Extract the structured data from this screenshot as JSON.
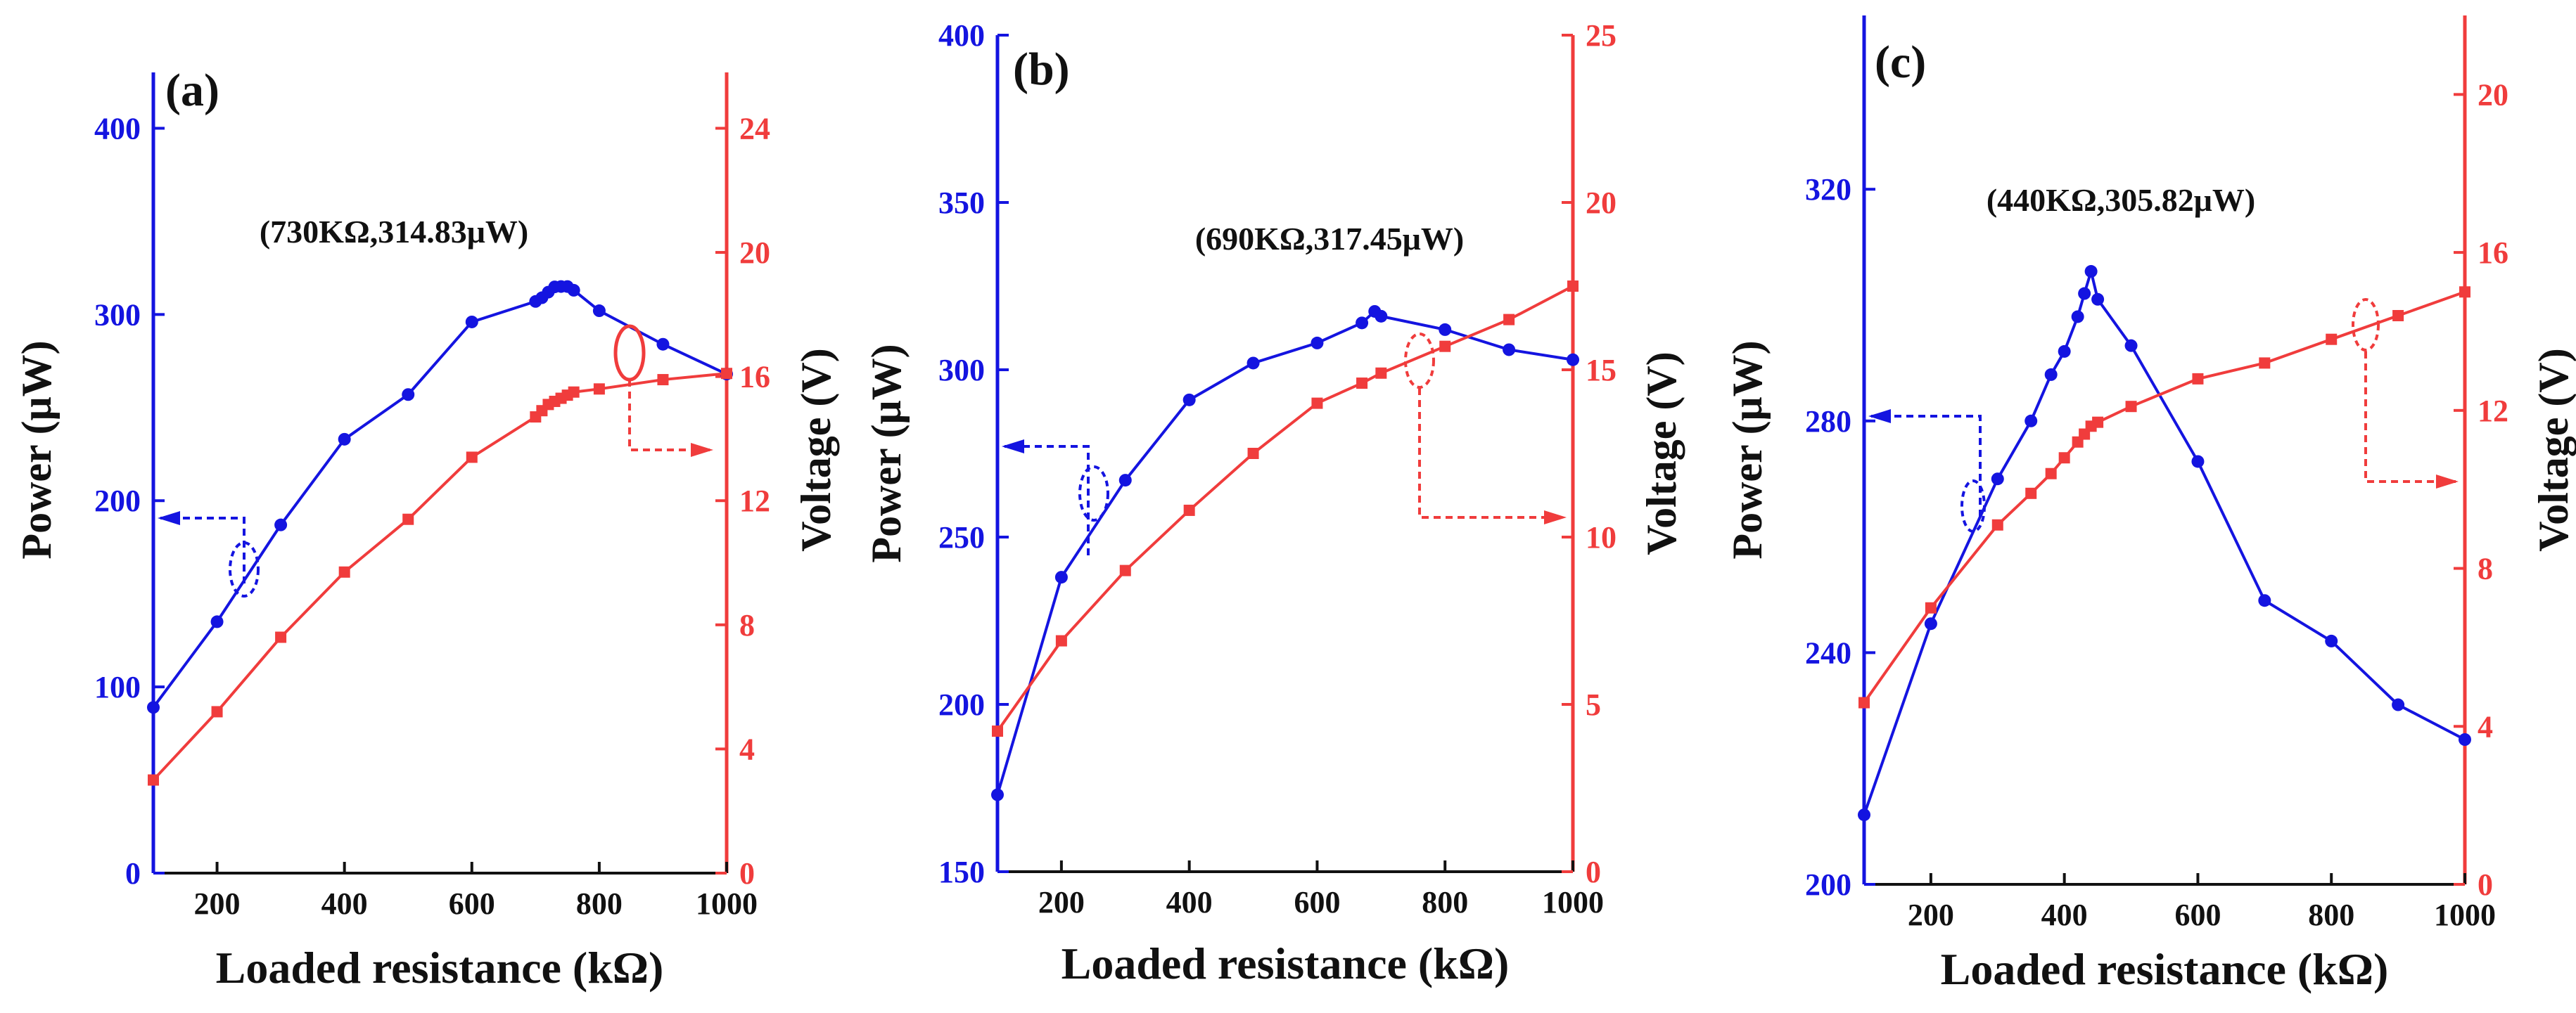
{
  "colors": {
    "power": "#1414e0",
    "voltage": "#f03c3c",
    "axis": "#111111"
  },
  "chart_data": [
    {
      "type": "line",
      "panel_label": "(a)",
      "annotation": "(730KΩ,314.83μW)",
      "xlabel": "Loaded resistance (kΩ)",
      "ylabel_left": "Power (μW)",
      "ylabel_right": "Voltage (V)",
      "xlim": [
        100,
        1000
      ],
      "ylim_left": [
        0,
        430
      ],
      "ylim_right": [
        0,
        25.8
      ],
      "xticks": [
        200,
        400,
        600,
        800,
        1000
      ],
      "yticks_left": [
        0,
        100,
        200,
        300,
        400
      ],
      "yticks_right": [
        0,
        4,
        8,
        12,
        16,
        20,
        24
      ],
      "series": [
        {
          "name": "Power",
          "axis": "left",
          "marker": "circle",
          "x": [
            100,
            200,
            300,
            400,
            500,
            600,
            700,
            710,
            720,
            730,
            740,
            750,
            760,
            800,
            900,
            1000
          ],
          "values": [
            89,
            135,
            187,
            233,
            257,
            296,
            307,
            309,
            312,
            314.83,
            315,
            315,
            313,
            302,
            284,
            268
          ]
        },
        {
          "name": "Voltage",
          "axis": "right",
          "marker": "square",
          "x": [
            100,
            200,
            300,
            400,
            500,
            600,
            700,
            710,
            720,
            730,
            740,
            750,
            760,
            800,
            900,
            1000
          ],
          "values": [
            3.0,
            5.2,
            7.6,
            9.7,
            11.4,
            13.4,
            14.7,
            14.9,
            15.1,
            15.2,
            15.3,
            15.4,
            15.5,
            15.6,
            15.9,
            16.1
          ]
        }
      ]
    },
    {
      "type": "line",
      "panel_label": "(b)",
      "annotation": "(690KΩ,317.45μW)",
      "xlabel": "Loaded resistance (kΩ)",
      "ylabel_left": "Power (μW)",
      "ylabel_right": "Voltage (V)",
      "xlim": [
        100,
        1000
      ],
      "ylim_left": [
        150,
        400
      ],
      "ylim_right": [
        0,
        25
      ],
      "xticks": [
        200,
        400,
        600,
        800,
        1000
      ],
      "yticks_left": [
        150,
        200,
        250,
        300,
        350,
        400
      ],
      "yticks_right": [
        0,
        5,
        10,
        15,
        20,
        25
      ],
      "series": [
        {
          "name": "Power",
          "axis": "left",
          "marker": "circle",
          "x": [
            100,
            200,
            300,
            400,
            500,
            600,
            670,
            690,
            700,
            800,
            900,
            1000
          ],
          "values": [
            173,
            238,
            267,
            291,
            302,
            308,
            314,
            317.45,
            316,
            312,
            306,
            303
          ]
        },
        {
          "name": "Voltage",
          "axis": "right",
          "marker": "square",
          "x": [
            100,
            200,
            300,
            400,
            500,
            600,
            670,
            700,
            800,
            900,
            1000
          ],
          "values": [
            4.2,
            6.9,
            9.0,
            10.8,
            12.5,
            14.0,
            14.6,
            14.9,
            15.7,
            16.5,
            17.5
          ]
        }
      ]
    },
    {
      "type": "line",
      "panel_label": "(c)",
      "annotation": "(440KΩ,305.82μW)",
      "xlabel": "Loaded resistance (kΩ)",
      "ylabel_left": "Power (μW)",
      "ylabel_right": "Voltage (V)",
      "xlim": [
        100,
        1000
      ],
      "ylim_left": [
        200,
        350
      ],
      "ylim_right": [
        0,
        22
      ],
      "xticks": [
        200,
        400,
        600,
        800,
        1000
      ],
      "yticks_left": [
        200,
        240,
        280,
        320
      ],
      "yticks_right": [
        0,
        4,
        8,
        12,
        16,
        20
      ],
      "series": [
        {
          "name": "Power",
          "axis": "left",
          "marker": "circle",
          "x": [
            100,
            200,
            300,
            350,
            380,
            400,
            420,
            430,
            440,
            450,
            500,
            600,
            700,
            800,
            900,
            1000
          ],
          "values": [
            212,
            245,
            270,
            280,
            288,
            292,
            298,
            302,
            305.82,
            301,
            293,
            273,
            249,
            242,
            231,
            225
          ]
        },
        {
          "name": "Voltage",
          "axis": "right",
          "marker": "square",
          "x": [
            100,
            200,
            300,
            350,
            380,
            400,
            420,
            430,
            440,
            450,
            500,
            600,
            700,
            800,
            900,
            1000
          ],
          "values": [
            4.6,
            7.0,
            9.1,
            9.9,
            10.4,
            10.8,
            11.2,
            11.4,
            11.6,
            11.7,
            12.1,
            12.8,
            13.2,
            13.8,
            14.4,
            15.0
          ]
        }
      ]
    }
  ]
}
